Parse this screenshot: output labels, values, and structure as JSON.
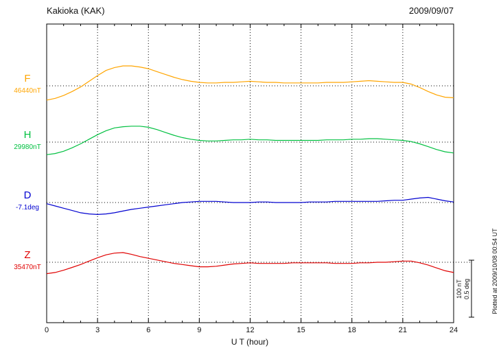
{
  "header": {
    "title": "Kakioka (KAK)",
    "date": "2009/09/07"
  },
  "axis": {
    "xlabel": "U T (hour)",
    "x_ticks": [
      "0",
      "3",
      "6",
      "9",
      "12",
      "15",
      "18",
      "21",
      "24"
    ],
    "grid_hours": [
      3,
      6,
      9,
      12,
      15,
      18,
      21
    ]
  },
  "scalebar": {
    "line1": "100 nT",
    "line2": "0.5 deg"
  },
  "footer_note": "Plotted at 2009/10/08 00:54 UT",
  "chart_data": {
    "type": "line",
    "title": "Kakioka (KAK) magnetogram 2009/09/07",
    "xlabel": "U T (hour)",
    "x_range": [
      0,
      24
    ],
    "x_start": 0,
    "x_step": 0.5,
    "grid": true,
    "series": [
      {
        "id": "F",
        "label": "F",
        "baseline_label": "46440nT",
        "baseline_value": 46440,
        "unit": "nT",
        "color": "#FFA500",
        "values": [
          -25,
          -22,
          -17,
          -10,
          -2,
          8,
          18,
          27,
          32,
          35,
          35,
          33,
          30,
          25,
          20,
          15,
          11,
          8,
          6,
          5,
          5,
          6,
          6,
          7,
          8,
          7,
          6,
          6,
          5,
          5,
          5,
          5,
          5,
          6,
          6,
          6,
          7,
          8,
          9,
          8,
          7,
          6,
          6,
          3,
          -3,
          -10,
          -16,
          -20,
          -21
        ]
      },
      {
        "id": "H",
        "label": "H",
        "baseline_label": "29980nT",
        "baseline_value": 29980,
        "unit": "nT",
        "color": "#00C040",
        "values": [
          -22,
          -20,
          -16,
          -10,
          -3,
          5,
          13,
          20,
          25,
          27,
          28,
          28,
          26,
          22,
          17,
          12,
          8,
          5,
          3,
          2,
          2,
          3,
          4,
          4,
          5,
          4,
          4,
          3,
          3,
          3,
          3,
          3,
          3,
          4,
          4,
          4,
          5,
          5,
          6,
          6,
          5,
          4,
          3,
          1,
          -3,
          -8,
          -13,
          -17,
          -19
        ]
      },
      {
        "id": "D",
        "label": "D",
        "baseline_label": "-7.1deg",
        "baseline_value": -7.1,
        "unit": "deg",
        "color": "#0000D0",
        "values": [
          -0.01,
          -0.03,
          -0.05,
          -0.07,
          -0.09,
          -0.1,
          -0.105,
          -0.1,
          -0.09,
          -0.075,
          -0.06,
          -0.05,
          -0.04,
          -0.03,
          -0.02,
          -0.01,
          0,
          0.005,
          0.01,
          0.01,
          0.01,
          0.005,
          0,
          0,
          0,
          0.005,
          0.005,
          0,
          0,
          0,
          0,
          0.005,
          0.005,
          0.005,
          0.01,
          0.01,
          0.01,
          0.01,
          0.01,
          0.01,
          0.015,
          0.02,
          0.02,
          0.03,
          0.04,
          0.045,
          0.03,
          0.015,
          0.005
        ]
      },
      {
        "id": "Z",
        "label": "Z",
        "baseline_label": "35470nT",
        "baseline_value": 35470,
        "unit": "nT",
        "color": "#E00000",
        "values": [
          -20,
          -18,
          -14,
          -9,
          -4,
          2,
          8,
          13,
          16,
          17,
          14,
          10,
          7,
          4,
          1,
          -2,
          -4,
          -6,
          -8,
          -8,
          -7,
          -5,
          -3,
          -2,
          -1,
          -2,
          -2,
          -2,
          -2,
          -1,
          -1,
          -1,
          -1,
          -1,
          -2,
          -2,
          -2,
          -1,
          -1,
          0,
          0,
          1,
          2,
          2,
          -1,
          -5,
          -10,
          -15,
          -18
        ]
      }
    ],
    "scale_note": "scale bar: 100 nT / 0.5 deg"
  }
}
